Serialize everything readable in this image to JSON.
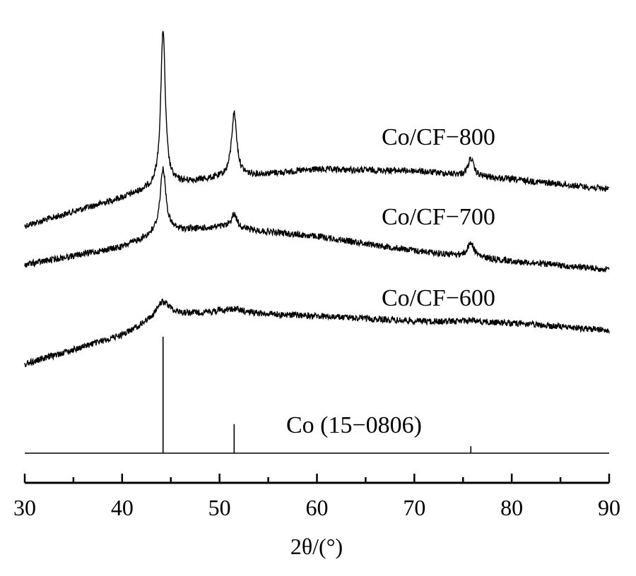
{
  "chart_data": {
    "type": "line",
    "title": "",
    "xlabel": "2θ/(°)",
    "ylabel": "",
    "xlim": [
      30,
      90
    ],
    "xticks": [
      30,
      40,
      50,
      60,
      70,
      80,
      90
    ],
    "grid": false,
    "legend": "none",
    "series": [
      {
        "name": "Co/CF−800",
        "peaks": [
          {
            "x": 44.2,
            "height": 220
          },
          {
            "x": 51.5,
            "height": 90
          },
          {
            "x": 75.8,
            "height": 25
          }
        ],
        "baseline": [
          [
            30,
            320
          ],
          [
            40,
            280
          ],
          [
            44,
            262
          ],
          [
            50,
            252
          ],
          [
            60,
            240
          ],
          [
            70,
            242
          ],
          [
            80,
            254
          ],
          [
            90,
            268
          ]
        ]
      },
      {
        "name": "Co/CF−700",
        "peaks": [
          {
            "x": 44.2,
            "height": 90
          },
          {
            "x": 51.5,
            "height": 20
          },
          {
            "x": 75.8,
            "height": 20
          }
        ],
        "baseline": [
          [
            30,
            375
          ],
          [
            40,
            350
          ],
          [
            44,
            328
          ],
          [
            50,
            322
          ],
          [
            60,
            335
          ],
          [
            70,
            355
          ],
          [
            80,
            370
          ],
          [
            90,
            382
          ]
        ]
      },
      {
        "name": "Co/CF−600",
        "peaks": [
          {
            "x": 44.2,
            "height": 20
          },
          {
            "x": 51.5,
            "height": 5
          },
          {
            "x": 75.8,
            "height": 3
          }
        ],
        "baseline": [
          [
            30,
            516
          ],
          [
            40,
            475
          ],
          [
            44,
            448
          ],
          [
            50,
            442
          ],
          [
            60,
            448
          ],
          [
            70,
            455
          ],
          [
            80,
            458
          ],
          [
            90,
            468
          ]
        ]
      }
    ],
    "reference": {
      "name": "Co (15−0806)",
      "lines": [
        {
          "x": 44.2,
          "intensity": 100
        },
        {
          "x": 51.5,
          "intensity": 25
        },
        {
          "x": 75.8,
          "intensity": 6
        }
      ]
    }
  }
}
